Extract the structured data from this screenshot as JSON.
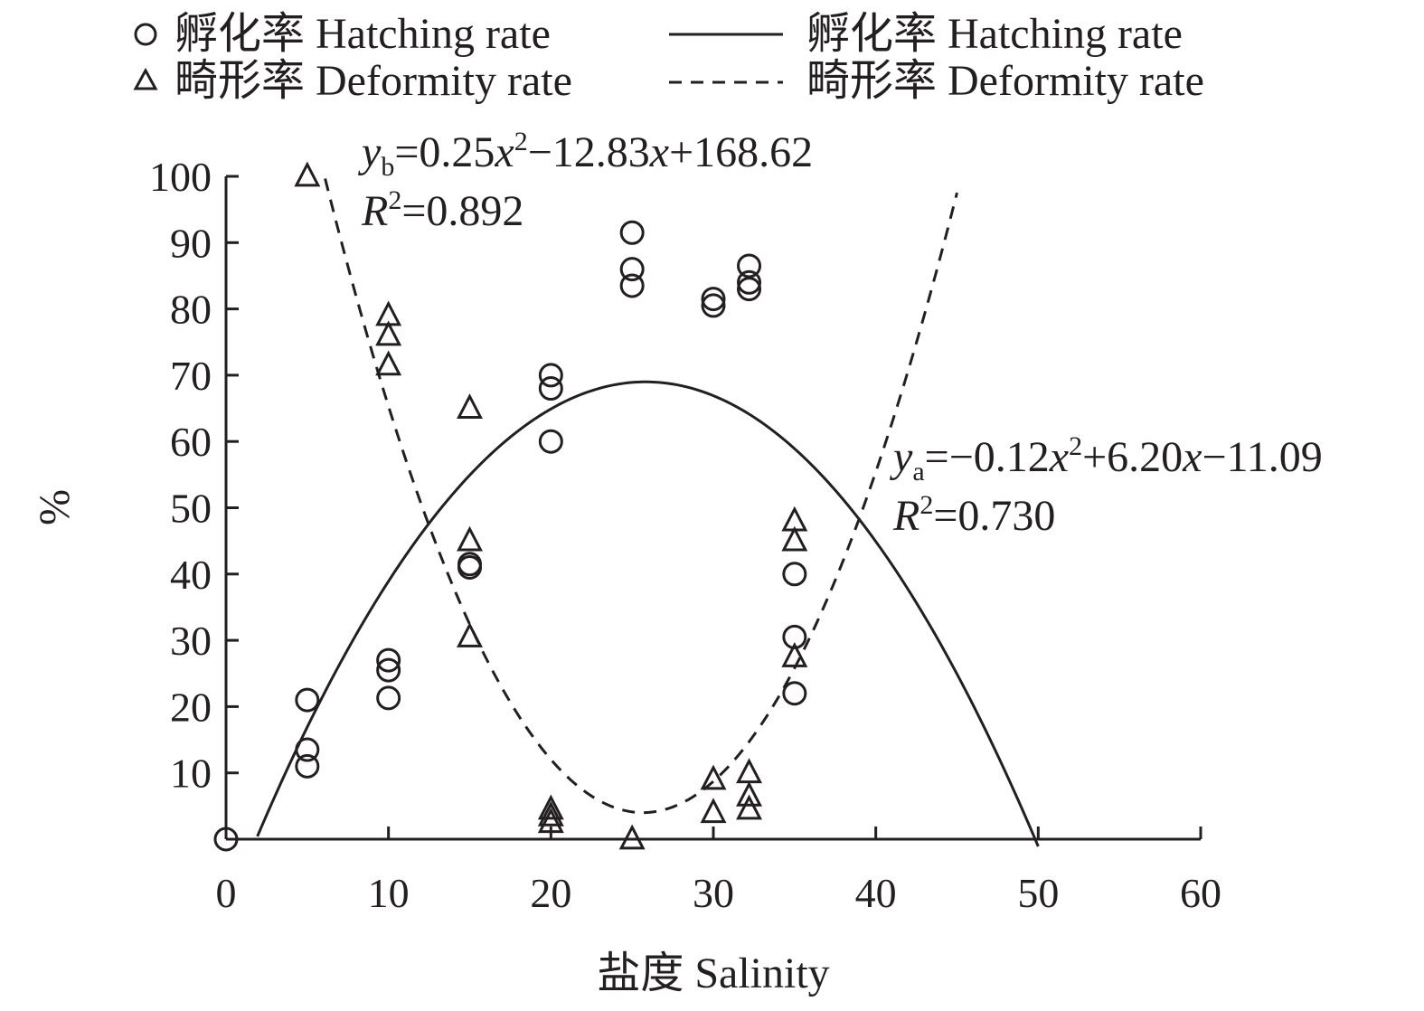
{
  "chart_data": {
    "type": "scatter",
    "xlabel": "盐度 Salinity",
    "ylabel": "%",
    "xlim": [
      0,
      60
    ],
    "ylim": [
      0,
      100
    ],
    "xticks": [
      "0",
      "10",
      "20",
      "30",
      "40",
      "50",
      "60"
    ],
    "yticks": [
      "10",
      "20",
      "30",
      "40",
      "50",
      "60",
      "70",
      "80",
      "90",
      "100"
    ],
    "grid": false,
    "legend_position": "top",
    "series": [
      {
        "name": "孵化率 Hatching rate",
        "kind": "points",
        "marker": "circle",
        "points": [
          [
            0,
            0
          ],
          [
            5,
            21
          ],
          [
            5,
            13.5
          ],
          [
            5,
            11
          ],
          [
            10,
            27
          ],
          [
            10,
            25.5
          ],
          [
            10,
            21.3
          ],
          [
            15,
            41.5
          ],
          [
            15,
            41
          ],
          [
            20,
            70
          ],
          [
            20,
            68
          ],
          [
            20,
            60
          ],
          [
            25,
            91.5
          ],
          [
            25,
            86
          ],
          [
            25,
            83.5
          ],
          [
            30,
            81.5
          ],
          [
            30,
            80.5
          ],
          [
            32.2,
            86.5
          ],
          [
            32.2,
            84
          ],
          [
            32.2,
            83
          ],
          [
            35,
            40
          ],
          [
            35,
            30.5
          ],
          [
            35,
            22
          ]
        ]
      },
      {
        "name": "畸形率 Deformity rate",
        "kind": "points",
        "marker": "triangle",
        "points": [
          [
            5,
            100
          ],
          [
            10,
            79
          ],
          [
            10,
            76
          ],
          [
            10,
            71.5
          ],
          [
            15,
            65
          ],
          [
            15,
            45
          ],
          [
            15,
            30.5
          ],
          [
            20,
            4.5
          ],
          [
            20,
            3.5
          ],
          [
            20,
            2.5
          ],
          [
            25,
            0
          ],
          [
            30,
            9
          ],
          [
            30,
            4
          ],
          [
            32.2,
            10
          ],
          [
            32.2,
            6.5
          ],
          [
            32.2,
            4.5
          ],
          [
            35,
            48
          ],
          [
            35,
            45
          ],
          [
            35,
            27.5
          ]
        ]
      },
      {
        "name": "孵化率 Hatching rate",
        "kind": "fit",
        "style": "solid",
        "coefficients": [
          -0.12,
          6.2,
          -11.09
        ],
        "x_range": [
          1.93,
          50
        ]
      },
      {
        "name": "畸形率 Deformity rate",
        "kind": "fit",
        "style": "dashed",
        "coefficients": [
          0.25,
          -12.83,
          168.62
        ],
        "x_range": [
          6.1,
          45
        ]
      }
    ],
    "annotations": {
      "deformity_eq": {
        "y": "y",
        "sub": "b",
        "part1": "=0.25",
        "x1": "x",
        "sup1": "2",
        "part2": "−12.83",
        "x2": "x",
        "part3": "+168.62"
      },
      "deformity_r2": {
        "r": "R",
        "sup": "2",
        "value": "=0.892"
      },
      "hatching_eq": {
        "y": "y",
        "sub": "a",
        "part1": "=−0.12",
        "x1": "x",
        "sup1": "2",
        "part2": "+6.20",
        "x2": "x",
        "part3": "−11.09"
      },
      "hatching_r2": {
        "r": "R",
        "sup": "2",
        "value": "=0.730"
      }
    }
  },
  "legend": {
    "hatching_points": "孵化率 Hatching rate",
    "deformity_points": "畸形率 Deformity rate",
    "hatching_fit": "孵化率 Hatching rate",
    "deformity_fit": "畸形率 Deformity rate"
  },
  "colors": {
    "ink": "#231f20",
    "background": "#ffffff"
  }
}
